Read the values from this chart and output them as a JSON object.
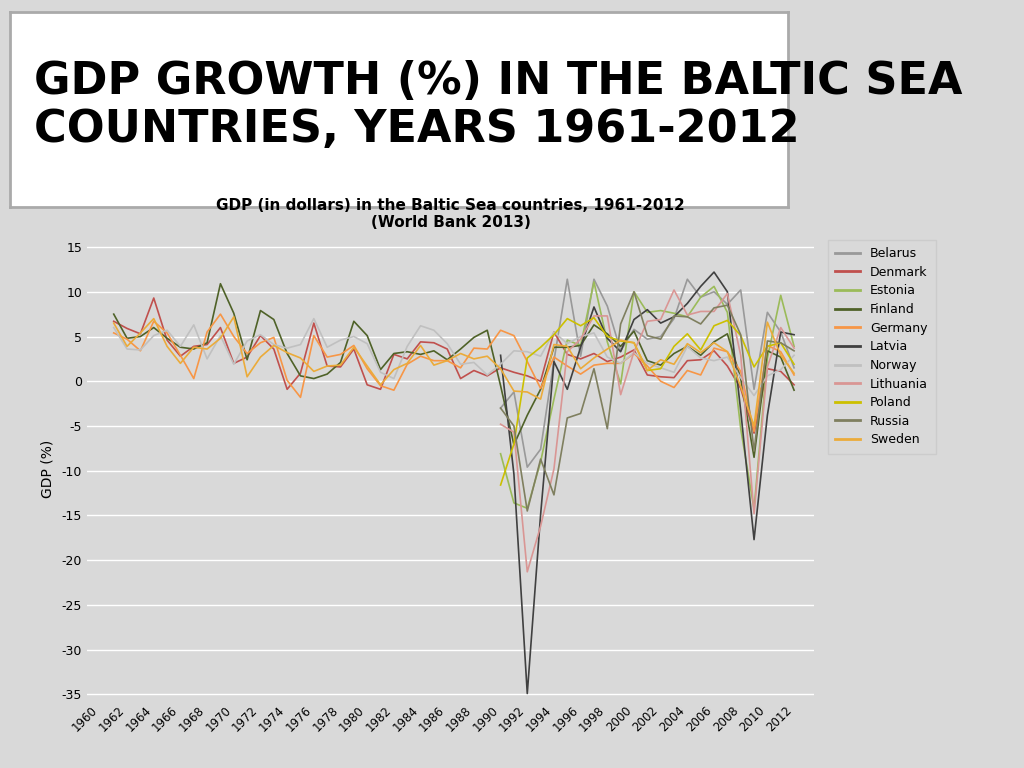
{
  "title_main": "GDP GROWTH (%) IN THE BALTIC SEA\nCOUNTRIES, YEARS 1961-2012",
  "title_chart": "GDP (in dollars) in the Baltic Sea countries, 1961-2012\n(World Bank 2013)",
  "ylabel": "GDP (%)",
  "years": [
    1960,
    1961,
    1962,
    1963,
    1964,
    1965,
    1966,
    1967,
    1968,
    1969,
    1970,
    1971,
    1972,
    1973,
    1974,
    1975,
    1976,
    1977,
    1978,
    1979,
    1980,
    1981,
    1982,
    1983,
    1984,
    1985,
    1986,
    1987,
    1988,
    1989,
    1990,
    1991,
    1992,
    1993,
    1994,
    1995,
    1996,
    1997,
    1998,
    1999,
    2000,
    2001,
    2002,
    2003,
    2004,
    2005,
    2006,
    2007,
    2008,
    2009,
    2010,
    2011,
    2012
  ],
  "countries": {
    "Belarus": {
      "color": "#999999",
      "data": [
        null,
        null,
        null,
        null,
        null,
        null,
        null,
        null,
        null,
        null,
        null,
        null,
        null,
        null,
        null,
        null,
        null,
        null,
        null,
        null,
        null,
        null,
        null,
        null,
        null,
        null,
        null,
        null,
        null,
        null,
        -3.0,
        -1.2,
        -9.6,
        -7.6,
        2.3,
        11.4,
        2.8,
        11.4,
        8.4,
        3.4,
        5.8,
        4.7,
        5.0,
        7.0,
        11.4,
        9.4,
        10.0,
        8.6,
        10.2,
        -0.9,
        7.7,
        5.5,
        1.5
      ]
    },
    "Denmark": {
      "color": "#C0504D",
      "data": [
        null,
        6.7,
        5.9,
        5.3,
        9.3,
        4.6,
        2.8,
        3.9,
        4.1,
        6.0,
        2.0,
        2.7,
        5.1,
        3.6,
        -0.9,
        0.9,
        6.5,
        1.7,
        1.6,
        3.6,
        -0.4,
        -0.9,
        3.0,
        2.5,
        4.4,
        4.3,
        3.6,
        0.3,
        1.2,
        0.6,
        1.5,
        1.0,
        0.6,
        0.0,
        5.5,
        3.0,
        2.5,
        3.1,
        2.2,
        2.7,
        3.5,
        0.7,
        0.5,
        0.4,
        2.3,
        2.4,
        3.4,
        1.7,
        -0.8,
        -5.8,
        1.4,
        1.1,
        -0.4
      ]
    },
    "Estonia": {
      "color": "#9BBB59",
      "data": [
        null,
        null,
        null,
        null,
        null,
        null,
        null,
        null,
        null,
        null,
        null,
        null,
        null,
        null,
        null,
        null,
        null,
        null,
        null,
        null,
        null,
        null,
        null,
        null,
        null,
        null,
        null,
        null,
        null,
        null,
        -8.1,
        -13.6,
        -14.2,
        -9.0,
        -2.0,
        4.6,
        4.0,
        11.1,
        4.4,
        -0.3,
        10.0,
        7.7,
        7.9,
        7.6,
        7.2,
        9.4,
        10.6,
        7.7,
        -5.3,
        -14.3,
        2.6,
        9.6,
        3.9
      ]
    },
    "Finland": {
      "color": "#4F6228",
      "data": [
        null,
        7.5,
        4.8,
        5.0,
        6.0,
        4.8,
        3.8,
        3.6,
        4.3,
        10.9,
        7.6,
        2.4,
        7.9,
        6.9,
        3.1,
        0.6,
        0.3,
        0.8,
        2.1,
        6.7,
        5.1,
        1.3,
        3.1,
        3.3,
        3.0,
        3.4,
        2.4,
        3.6,
        4.9,
        5.7,
        -0.5,
        -7.1,
        -3.8,
        -0.9,
        3.8,
        3.8,
        4.0,
        6.3,
        5.3,
        3.9,
        5.6,
        2.3,
        1.8,
        3.1,
        3.9,
        2.9,
        4.4,
        5.3,
        0.3,
        -8.5,
        3.4,
        2.7,
        -1.0
      ]
    },
    "Germany": {
      "color": "#F79646",
      "data": [
        null,
        5.4,
        4.7,
        3.4,
        6.7,
        5.4,
        2.9,
        0.3,
        5.5,
        7.5,
        5.0,
        3.1,
        4.3,
        4.9,
        0.1,
        -1.8,
        5.1,
        2.7,
        3.0,
        4.0,
        1.4,
        -0.5,
        -1.0,
        1.9,
        2.8,
        2.3,
        2.3,
        1.5,
        3.7,
        3.6,
        5.7,
        5.1,
        2.2,
        -0.8,
        2.7,
        1.7,
        0.8,
        1.8,
        2.0,
        2.0,
        3.1,
        1.7,
        0.0,
        -0.7,
        1.2,
        0.7,
        3.7,
        3.3,
        1.1,
        -5.6,
        4.0,
        3.3,
        0.7
      ]
    },
    "Latvia": {
      "color": "#404040",
      "data": [
        null,
        null,
        null,
        null,
        null,
        null,
        null,
        null,
        null,
        null,
        null,
        null,
        null,
        null,
        null,
        null,
        null,
        null,
        null,
        null,
        null,
        null,
        null,
        null,
        null,
        null,
        null,
        null,
        null,
        null,
        2.9,
        -10.4,
        -34.9,
        -14.9,
        2.2,
        -0.9,
        3.8,
        8.3,
        4.8,
        3.3,
        6.9,
        8.0,
        6.5,
        7.2,
        8.7,
        10.6,
        12.2,
        10.0,
        -3.3,
        -17.7,
        -3.8,
        5.5,
        5.2
      ]
    },
    "Norway": {
      "color": "#C0C0C0",
      "data": [
        null,
        6.0,
        3.6,
        3.5,
        5.1,
        5.7,
        3.9,
        6.3,
        2.5,
        5.1,
        1.9,
        4.5,
        5.2,
        4.1,
        3.7,
        4.1,
        7.0,
        3.8,
        4.6,
        5.0,
        4.2,
        1.0,
        0.3,
        3.9,
        6.2,
        5.7,
        4.2,
        1.9,
        2.1,
        0.7,
        1.9,
        3.4,
        3.3,
        2.8,
        5.5,
        4.2,
        5.0,
        5.4,
        2.7,
        2.0,
        3.2,
        2.0,
        1.5,
        1.0,
        3.9,
        2.6,
        2.3,
        2.7,
        0.4,
        -1.6,
        0.6,
        1.3,
        2.9
      ]
    },
    "Lithuania": {
      "color": "#D99694",
      "data": [
        null,
        null,
        null,
        null,
        null,
        null,
        null,
        null,
        null,
        null,
        null,
        null,
        null,
        null,
        null,
        null,
        null,
        null,
        null,
        null,
        null,
        null,
        null,
        null,
        null,
        null,
        null,
        null,
        null,
        null,
        -4.8,
        -5.7,
        -21.3,
        -16.2,
        -9.8,
        3.3,
        4.7,
        7.3,
        7.3,
        -1.5,
        3.3,
        6.7,
        6.9,
        10.2,
        7.4,
        7.8,
        7.8,
        9.8,
        2.9,
        -14.8,
        1.6,
        6.0,
        3.7
      ]
    },
    "Poland": {
      "color": "#CCC000",
      "data": [
        null,
        null,
        null,
        null,
        null,
        null,
        null,
        null,
        null,
        null,
        null,
        null,
        null,
        null,
        null,
        null,
        null,
        null,
        null,
        null,
        null,
        null,
        null,
        null,
        null,
        null,
        null,
        null,
        null,
        null,
        -11.6,
        -7.0,
        2.6,
        3.8,
        5.2,
        7.0,
        6.2,
        7.1,
        5.0,
        4.5,
        4.3,
        1.2,
        1.4,
        3.9,
        5.3,
        3.5,
        6.2,
        6.8,
        5.1,
        1.6,
        3.9,
        4.3,
        1.9
      ]
    },
    "Russia": {
      "color": "#7F7F5F",
      "data": [
        null,
        null,
        null,
        null,
        null,
        null,
        null,
        null,
        null,
        null,
        null,
        null,
        null,
        null,
        null,
        null,
        null,
        null,
        null,
        null,
        null,
        null,
        null,
        null,
        null,
        null,
        null,
        null,
        null,
        null,
        -3.0,
        -5.0,
        -14.5,
        -8.7,
        -12.7,
        -4.1,
        -3.6,
        1.4,
        -5.3,
        6.4,
        10.0,
        5.1,
        4.7,
        7.3,
        7.2,
        6.4,
        8.2,
        8.5,
        5.2,
        -7.8,
        4.5,
        4.3,
        3.4
      ]
    },
    "Sweden": {
      "color": "#EBAB3A",
      "data": [
        null,
        6.5,
        3.9,
        5.4,
        7.0,
        3.9,
        2.0,
        3.8,
        3.6,
        4.8,
        7.2,
        0.5,
        2.7,
        4.0,
        3.2,
        2.6,
        1.1,
        1.7,
        1.8,
        3.8,
        1.7,
        -0.4,
        1.3,
        2.0,
        4.0,
        1.8,
        2.3,
        3.1,
        2.5,
        2.8,
        1.4,
        -1.1,
        -1.2,
        -2.0,
        4.1,
        3.9,
        1.4,
        2.6,
        3.6,
        4.6,
        4.3,
        1.2,
        2.4,
        1.9,
        4.2,
        3.2,
        4.3,
        3.3,
        -0.6,
        -5.0,
        6.6,
        2.9,
        0.9
      ]
    }
  },
  "ylim": [
    -35,
    15
  ],
  "yticks": [
    15,
    10,
    5,
    0,
    -5,
    -10,
    -15,
    -20,
    -25,
    -30,
    -35
  ],
  "outer_bg_color": "#D9D9D9",
  "plot_bg_color": "#D9D9D9",
  "title_bg_color": "#FFFFFF",
  "grid_color": "#FFFFFF",
  "title_border_color": "#AAAAAA",
  "title_fontsize": 32,
  "chart_title_fontsize": 11
}
